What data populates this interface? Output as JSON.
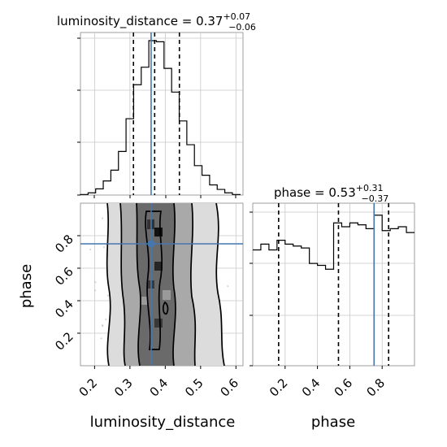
{
  "chart_data": [
    {
      "type": "histogram",
      "parameter": "luminosity_distance",
      "title": {
        "name": "luminosity_distance",
        "median": "0.37",
        "upper": "+0.07",
        "lower": "−0.06"
      },
      "xlim": [
        0.16,
        0.62
      ],
      "bins": [
        0.16,
        0.1815,
        0.203,
        0.2245,
        0.246,
        0.2675,
        0.289,
        0.3105,
        0.332,
        0.3535,
        0.375,
        0.3965,
        0.418,
        0.4395,
        0.461,
        0.4825,
        0.504,
        0.5255,
        0.547,
        0.5685,
        0.59,
        0.6115
      ],
      "counts": [
        1,
        4,
        11,
        25,
        44,
        77,
        135,
        195,
        226,
        273,
        271,
        224,
        182,
        131,
        89,
        52,
        35,
        18,
        10,
        4,
        1
      ],
      "quantiles": [
        0.31,
        0.37,
        0.44
      ],
      "truth": 0.36,
      "grid": true
    },
    {
      "type": "histogram",
      "parameter": "phase",
      "title": {
        "name": "phase",
        "median": "0.53",
        "upper": "+0.31",
        "lower": "−0.37"
      },
      "xlim": [
        0.0,
        1.0
      ],
      "bins": [
        0.0,
        0.05,
        0.1,
        0.15,
        0.2,
        0.25,
        0.3,
        0.35,
        0.4,
        0.45,
        0.5,
        0.55,
        0.6,
        0.65,
        0.7,
        0.75,
        0.8,
        0.85,
        0.9,
        0.95,
        1.0
      ],
      "counts": [
        0.6,
        0.63,
        0.6,
        0.65,
        0.63,
        0.62,
        0.61,
        0.53,
        0.52,
        0.5,
        0.74,
        0.72,
        0.74,
        0.73,
        0.71,
        0.78,
        0.7,
        0.71,
        0.72,
        0.69
      ],
      "quantiles": [
        0.16,
        0.53,
        0.84
      ],
      "truth": 0.75,
      "xticks": [
        "0.2",
        "0.4",
        "0.6",
        "0.8"
      ],
      "xlabel": "phase",
      "grid": true
    },
    {
      "type": "scatter_density",
      "x_parameter": "luminosity_distance",
      "y_parameter": "phase",
      "xlim": [
        0.16,
        0.62
      ],
      "ylim": [
        0.0,
        1.0
      ],
      "xticks": [
        "0.2",
        "0.3",
        "0.4",
        "0.5",
        "0.6"
      ],
      "yticks": [
        "0.2",
        "0.4",
        "0.6",
        "0.8"
      ],
      "xlabel": "luminosity_distance",
      "ylabel": "phase",
      "truth": {
        "x": 0.36,
        "y": 0.75
      },
      "contour_levels": 4,
      "grid": true
    }
  ],
  "colors": {
    "truth": "#4477b0",
    "contour": "#000000",
    "fill_dark": "#3c3c3c",
    "fill_mid": "#8c8c8c",
    "fill_light": "#d8d8d8",
    "points": "#a6a6a6",
    "grid": "#c8c8c8"
  }
}
